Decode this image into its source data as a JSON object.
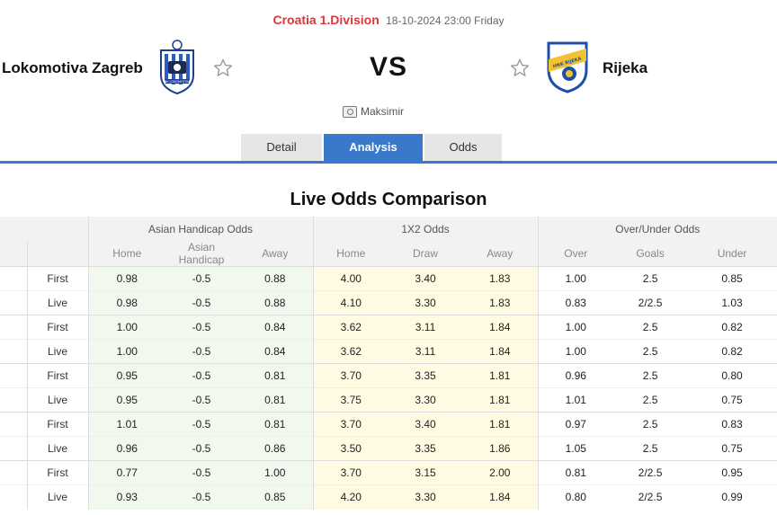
{
  "match": {
    "league": "Croatia 1.Division",
    "datetime": "18-10-2024 23:00 Friday",
    "home_team": "Lokomotiva Zagreb",
    "away_team": "Rijeka",
    "vs": "VS",
    "venue": "Maksimir",
    "home_logo_text": "NK LOKOMOTIVA",
    "away_logo_text": "HNK RIJEKA"
  },
  "tabs": [
    {
      "label": "Detail",
      "active": false
    },
    {
      "label": "Analysis",
      "active": true
    },
    {
      "label": "Odds",
      "active": false
    }
  ],
  "section_title": "Live Odds Comparison",
  "table": {
    "groups": [
      "Asian Handicap Odds",
      "1X2 Odds",
      "Over/Under Odds"
    ],
    "columns": [
      "Home",
      "Asian Handicap",
      "Away",
      "Home",
      "Draw",
      "Away",
      "Over",
      "Goals",
      "Under"
    ],
    "rows": [
      {
        "label": "First",
        "values": [
          "0.98",
          "-0.5",
          "0.88",
          "4.00",
          "3.40",
          "1.83",
          "1.00",
          "2.5",
          "0.85"
        ]
      },
      {
        "label": "Live",
        "values": [
          "0.98",
          "-0.5",
          "0.88",
          "4.10",
          "3.30",
          "1.83",
          "0.83",
          "2/2.5",
          "1.03"
        ]
      },
      {
        "label": "First",
        "values": [
          "1.00",
          "-0.5",
          "0.84",
          "3.62",
          "3.11",
          "1.84",
          "1.00",
          "2.5",
          "0.82"
        ]
      },
      {
        "label": "Live",
        "values": [
          "1.00",
          "-0.5",
          "0.84",
          "3.62",
          "3.11",
          "1.84",
          "1.00",
          "2.5",
          "0.82"
        ]
      },
      {
        "label": "First",
        "values": [
          "0.95",
          "-0.5",
          "0.81",
          "3.70",
          "3.35",
          "1.81",
          "0.96",
          "2.5",
          "0.80"
        ]
      },
      {
        "label": "Live",
        "values": [
          "0.95",
          "-0.5",
          "0.81",
          "3.75",
          "3.30",
          "1.81",
          "1.01",
          "2.5",
          "0.75"
        ]
      },
      {
        "label": "First",
        "values": [
          "1.01",
          "-0.5",
          "0.81",
          "3.70",
          "3.40",
          "1.81",
          "0.97",
          "2.5",
          "0.83"
        ]
      },
      {
        "label": "Live",
        "values": [
          "0.96",
          "-0.5",
          "0.86",
          "3.50",
          "3.35",
          "1.86",
          "1.05",
          "2.5",
          "0.75"
        ]
      },
      {
        "label": "First",
        "values": [
          "0.77",
          "-0.5",
          "1.00",
          "3.70",
          "3.15",
          "2.00",
          "0.81",
          "2/2.5",
          "0.95"
        ]
      },
      {
        "label": "Live",
        "values": [
          "0.93",
          "-0.5",
          "0.85",
          "4.20",
          "3.30",
          "1.84",
          "0.80",
          "2/2.5",
          "0.99"
        ]
      }
    ]
  },
  "colors": {
    "league": "#d9363e",
    "accent_blue": "#3a78c9",
    "ah_bg": "#f1f8ee",
    "x12_bg": "#fffbe3",
    "header_bg": "#f2f2f2"
  },
  "icons": {
    "favorite": "star-outline-icon",
    "venue": "stadium-icon"
  }
}
